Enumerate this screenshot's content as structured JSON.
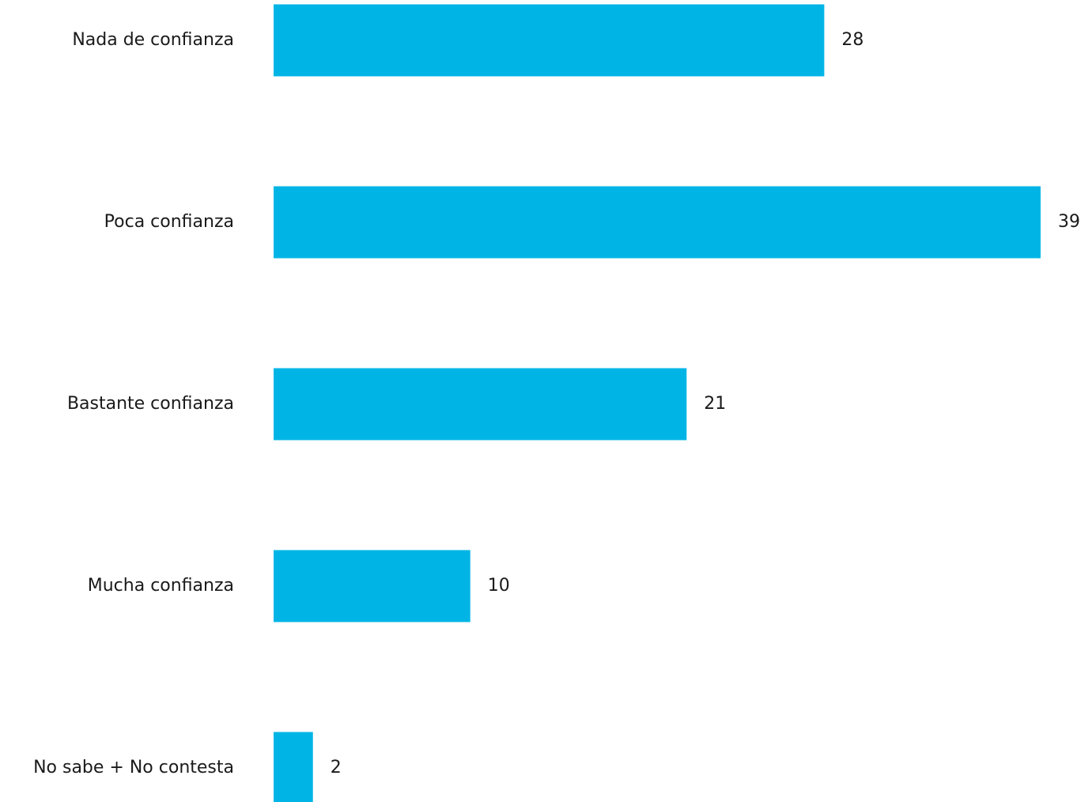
{
  "chart_data": {
    "type": "bar",
    "orientation": "horizontal",
    "categories": [
      "Nada de confianza",
      "Poca confianza",
      "Bastante confianza",
      "Mucha confianza",
      "No sabe + No contesta"
    ],
    "values": [
      28,
      39,
      21,
      10,
      2
    ],
    "data_labels": [
      "28",
      "39",
      "21",
      "10",
      "2"
    ],
    "title": "",
    "xlabel": "",
    "ylabel": "",
    "xlim": [
      0,
      39
    ],
    "grid": false,
    "legend": "none",
    "colors": {
      "bar": "#00B5E6",
      "text": "#1a1a1a"
    }
  }
}
